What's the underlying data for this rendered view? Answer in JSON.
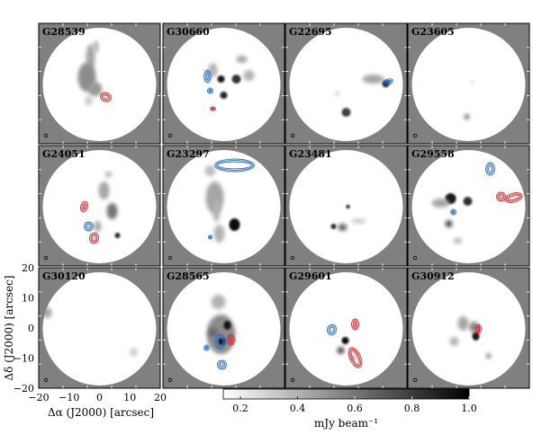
{
  "panels": [
    {
      "label": "G28539"
    },
    {
      "label": "G30660"
    },
    {
      "label": "G22695"
    },
    {
      "label": "G23605"
    },
    {
      "label": "G24051"
    },
    {
      "label": "G23297"
    },
    {
      "label": "G23481"
    },
    {
      "label": "G29558"
    },
    {
      "label": "G30120"
    },
    {
      "label": "G28565"
    },
    {
      "label": "G29601"
    },
    {
      "label": "G30912"
    }
  ],
  "axes": {
    "xlabel": "Δα (J2000)  [arcsec]",
    "ylabel": "Δδ (J2000)  [arcsec]",
    "x_ticks": [
      "−20",
      "−10",
      "0",
      "10",
      "20"
    ],
    "y_ticks": [
      "20",
      "10",
      "0",
      "−10",
      "−20"
    ],
    "xlim": [
      -20,
      20
    ],
    "ylim": [
      -20,
      20
    ]
  },
  "colorbar": {
    "label": "mJy beam⁻¹",
    "ticks": [
      "0.2",
      "0.4",
      "0.6",
      "0.8",
      "1.0"
    ],
    "tick_values": [
      0.2,
      0.4,
      0.6,
      0.8,
      1.0
    ],
    "range": [
      0.14,
      1.0
    ]
  },
  "colors": {
    "mask": "#808080",
    "blue_contour": "#2a6fc0",
    "red_contour": "#cc2a2a"
  }
}
